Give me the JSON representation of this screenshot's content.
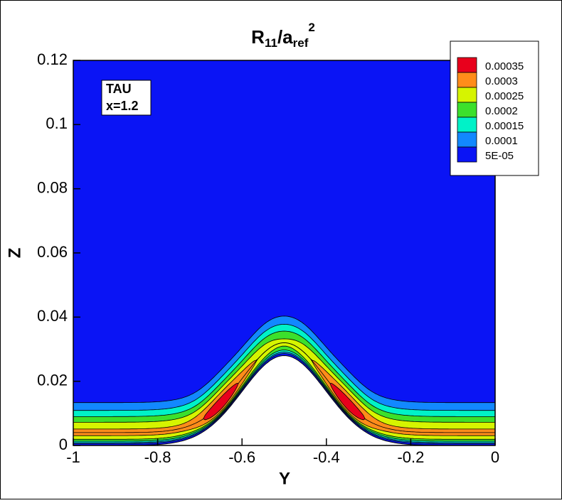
{
  "chart_data": {
    "type": "contour",
    "title": {
      "base": "R",
      "sub": "11",
      "mid": "/a",
      "sub2": "ref",
      "sup": "2"
    },
    "x_label": "Y",
    "y_label": "Z",
    "xlim": [
      -1,
      0
    ],
    "xticks": [
      -1,
      -0.8,
      -0.6,
      -0.4,
      -0.2,
      0
    ],
    "ylim": [
      0,
      0.12
    ],
    "yticks": [
      0,
      0.02,
      0.04,
      0.06,
      0.08,
      0.1,
      0.12
    ],
    "annotation": [
      "TAU",
      "x=1.2"
    ],
    "legend": "top-right",
    "levels": [
      {
        "value": 0.00035,
        "color": "#e8001c"
      },
      {
        "value": 0.0003,
        "color": "#ff8c1a"
      },
      {
        "value": 0.00025,
        "color": "#d6f400"
      },
      {
        "value": 0.0002,
        "color": "#3ce02c"
      },
      {
        "value": 0.00015,
        "color": "#00f2c8"
      },
      {
        "value": 0.0001,
        "color": "#1288ff"
      },
      {
        "value": 5e-05,
        "label": "5E-05",
        "color": "#0a14f5"
      }
    ]
  }
}
